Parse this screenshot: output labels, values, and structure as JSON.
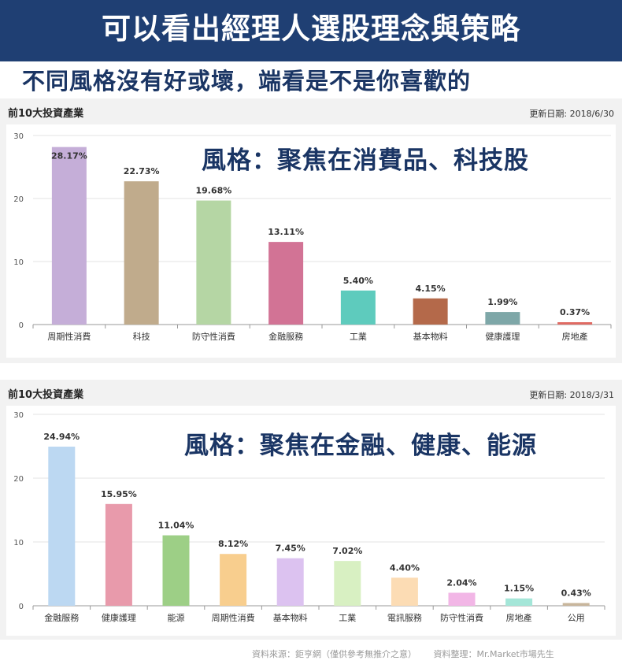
{
  "banner": {
    "title": "可以看出經理人選股理念與策略"
  },
  "subtitle": "不同風格沒有好或壞，端看是不是你喜歡的",
  "footer": {
    "source": "資料來源：鉅亨網（僅供參考無推介之意）",
    "compiled": "資料整理：Mr.Market市場先生"
  },
  "panels": [
    {
      "header": "前10大投資產業",
      "date": "更新日期: 2018/6/30",
      "style_note": "風格：聚焦在消費品、科技股"
    },
    {
      "header": "前10大投資產業",
      "date": "更新日期: 2018/3/31",
      "style_note": "風格：聚焦在金融、健康、能源"
    }
  ],
  "chart_data": [
    {
      "type": "bar",
      "categories": [
        "周期性消費",
        "科技",
        "防守性消費",
        "金融服務",
        "工業",
        "基本物料",
        "健康護理",
        "房地產"
      ],
      "values": [
        28.17,
        22.73,
        19.68,
        13.11,
        5.4,
        4.15,
        1.99,
        0.37
      ],
      "labels": [
        "28.17%",
        "22.73%",
        "19.68%",
        "13.11%",
        "5.40%",
        "4.15%",
        "1.99%",
        "0.37%"
      ],
      "colors": [
        "#c5aed8",
        "#c0ab8c",
        "#b5d6a4",
        "#d27395",
        "#5ecbbd",
        "#b4694a",
        "#7ea7a8",
        "#e06a63"
      ],
      "yticks": [
        0,
        10,
        20,
        30
      ],
      "ylim": [
        0,
        30
      ]
    },
    {
      "type": "bar",
      "categories": [
        "金融服務",
        "健康護理",
        "能源",
        "周期性消費",
        "基本物料",
        "工業",
        "電訊服務",
        "防守性消費",
        "房地產",
        "公用"
      ],
      "values": [
        24.94,
        15.95,
        11.04,
        8.12,
        7.45,
        7.02,
        4.4,
        2.04,
        1.15,
        0.43
      ],
      "labels": [
        "24.94%",
        "15.95%",
        "11.04%",
        "8.12%",
        "7.45%",
        "7.02%",
        "4.40%",
        "2.04%",
        "1.15%",
        "0.43%"
      ],
      "colors": [
        "#bcd8f2",
        "#e89aab",
        "#9dcf86",
        "#f8ce8e",
        "#dcc2f0",
        "#d8f0c2",
        "#fcdcb4",
        "#f2b6e6",
        "#a4e6d8",
        "#c8b69c"
      ],
      "yticks": [
        0,
        10,
        20,
        30
      ],
      "ylim": [
        0,
        30
      ]
    }
  ]
}
